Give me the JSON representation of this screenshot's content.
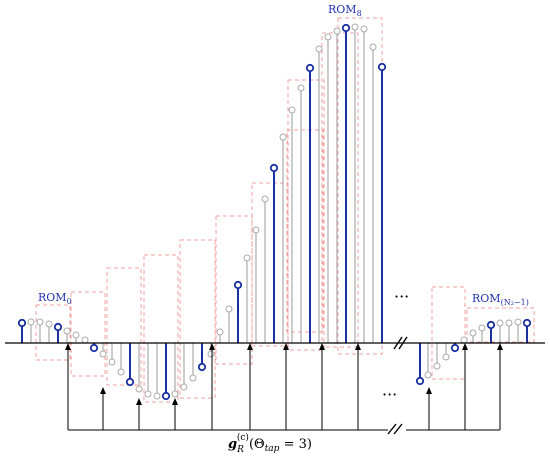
{
  "labels": {
    "rom_first_main": "ROM",
    "rom_first_sub": "0",
    "rom_mid_main": "ROM",
    "rom_mid_sub": "8",
    "rom_last_main": "ROM",
    "rom_last_sub": "(N₂−1)",
    "ellipsis_top": "···",
    "ellipsis_bottom": "···",
    "equation_g": "g",
    "equation_R": "R",
    "equation_c": "(c)",
    "equation_arg": "(Θ",
    "equation_tap": "tap",
    "equation_rest": " = 3)"
  },
  "colors": {
    "highlight_stem": "#1a2fa0",
    "grey_stem": "#aaaaaa",
    "rom_box": "#f0a0a0",
    "axis": "#000000"
  }
}
